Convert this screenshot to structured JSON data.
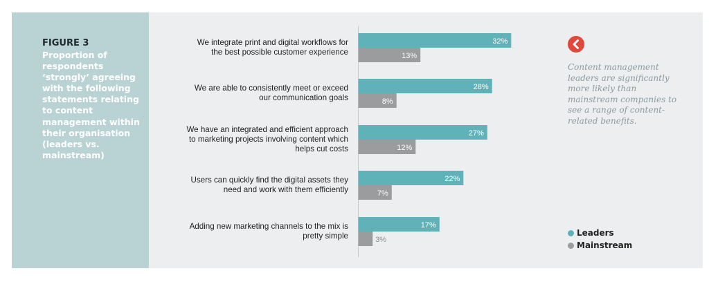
{
  "figure": {
    "label": "FIGURE 3",
    "description": "Proportion of respondents ‘strongly’ agreeing with the following statements relating to content management within their organisation (leaders vs. mainstream)"
  },
  "note": {
    "icon": "chevron-left-icon",
    "text": "Content management leaders are significantly more likely than mainstream companies to see a range of content-related benefits."
  },
  "colors": {
    "leaders": "#5fb3b8",
    "mainstream": "#9a9c9d",
    "accent": "#e0483b",
    "sidebar": "#b9d2d4"
  },
  "chart_data": {
    "type": "bar",
    "orientation": "horizontal",
    "categories": [
      [
        "We integrate print and digital workflows for",
        "the best possible customer experience"
      ],
      [
        "We are able to consistently meet or exceed",
        "our communication goals"
      ],
      [
        "We have an integrated and efficient approach",
        "to marketing projects involving content which",
        "helps cut costs"
      ],
      [
        "Users can quickly find the digital assets they",
        "need and work with them efficiently"
      ],
      [
        "Adding new marketing channels to the mix is",
        "pretty simple"
      ]
    ],
    "series": [
      {
        "name": "Leaders",
        "values": [
          32,
          28,
          27,
          22,
          17
        ],
        "labels": [
          "32%",
          "28%",
          "27%",
          "22%",
          "17%"
        ]
      },
      {
        "name": "Mainstream",
        "values": [
          13,
          8,
          12,
          7,
          3
        ],
        "labels": [
          "13%",
          "8%",
          "12%",
          "7%",
          "3%"
        ]
      }
    ],
    "xlim": [
      0,
      100
    ],
    "unit": "%",
    "legend_position": "bottom-right",
    "grid": false
  }
}
